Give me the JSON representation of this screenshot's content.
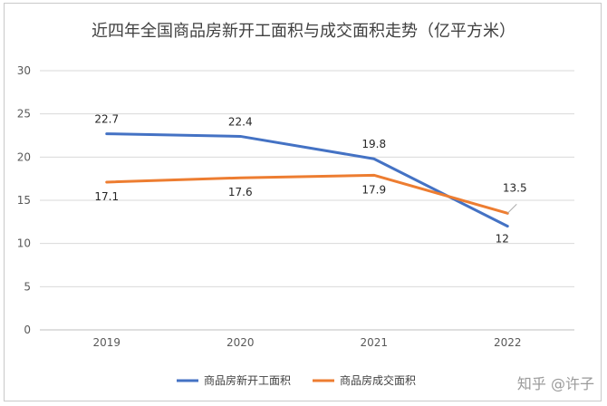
{
  "chart_data": {
    "type": "line",
    "title": "近四年全国商品房新开工面积与成交面积走势（亿平方米）",
    "categories": [
      "2019",
      "2020",
      "2021",
      "2022"
    ],
    "ylim": [
      0,
      30
    ],
    "yticks": [
      "0",
      "5",
      "10",
      "15",
      "20",
      "25",
      "30"
    ],
    "grid": true,
    "legend_position": "bottom",
    "series": [
      {
        "name": "商品房新开工面积",
        "color": "#4472C4",
        "values": [
          22.7,
          22.4,
          19.8,
          12
        ],
        "labels": [
          "22.7",
          "22.4",
          "19.8",
          "12"
        ]
      },
      {
        "name": "商品房成交面积",
        "color": "#ED7D31",
        "values": [
          17.1,
          17.6,
          17.9,
          13.5
        ],
        "labels": [
          "17.1",
          "17.6",
          "17.9",
          "13.5"
        ]
      }
    ]
  },
  "watermark": "知乎 @许子"
}
